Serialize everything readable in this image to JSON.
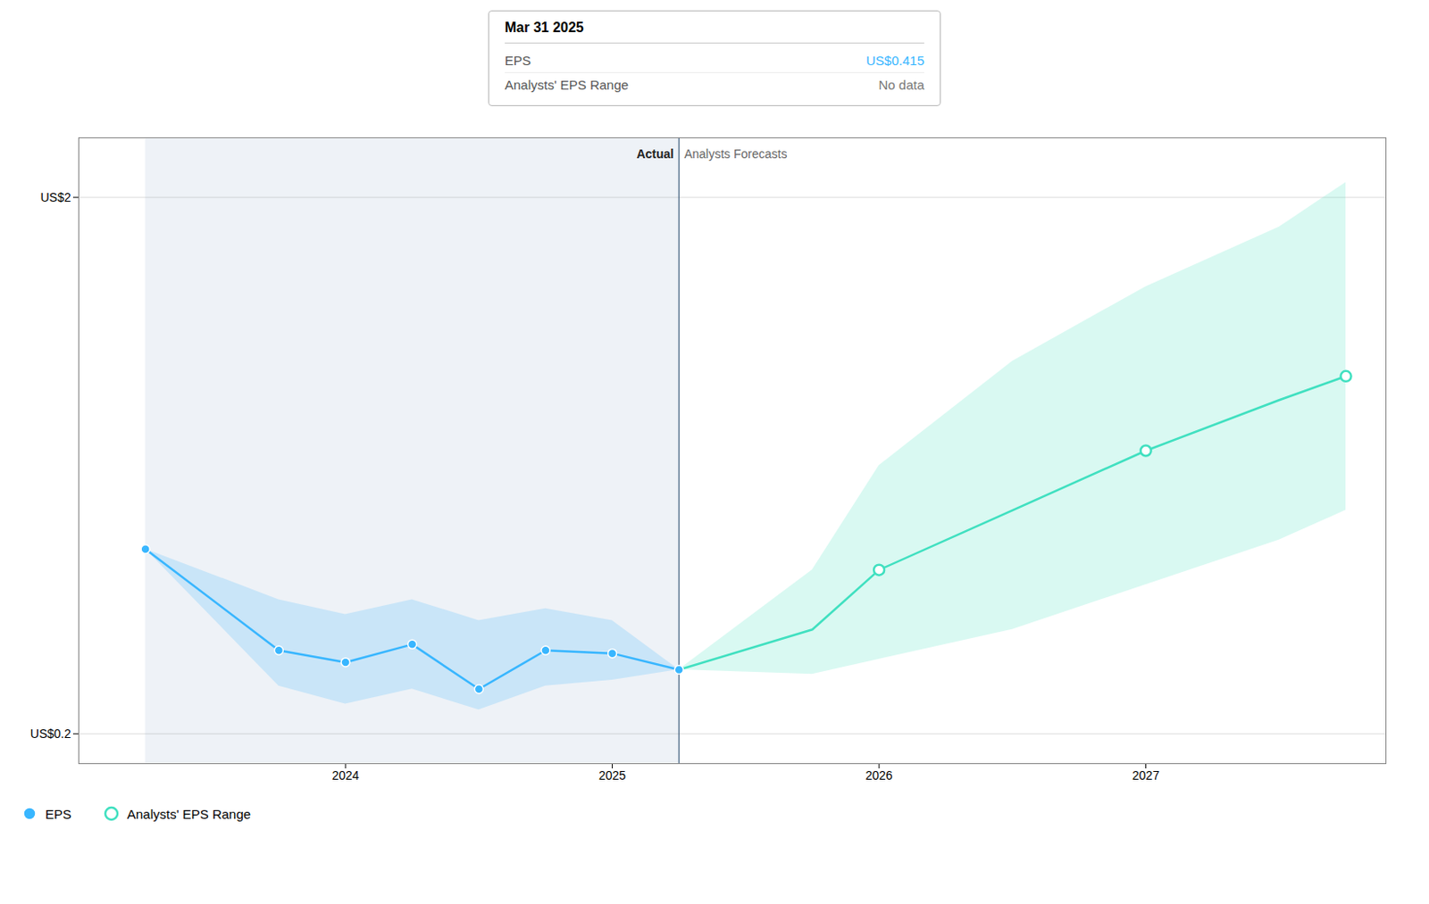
{
  "chart_data": {
    "type": "line",
    "title": "Mar 31 2025",
    "tooltip": {
      "rows": [
        {
          "label": "EPS",
          "value": "US$0.415"
        },
        {
          "label": "Analysts' EPS Range",
          "value": "No data"
        }
      ]
    },
    "series": [
      {
        "name": "EPS",
        "color": "#38b6ff",
        "marker": "circle",
        "x": [
          2023.25,
          2023.75,
          2024.0,
          2024.25,
          2024.5,
          2024.75,
          2025.0,
          2025.25
        ],
        "values": [
          0.82,
          0.48,
          0.44,
          0.5,
          0.35,
          0.48,
          0.47,
          0.415
        ],
        "band_upper": [
          0.82,
          0.65,
          0.6,
          0.65,
          0.58,
          0.62,
          0.58,
          0.415
        ],
        "band_lower": [
          0.82,
          0.36,
          0.3,
          0.35,
          0.28,
          0.36,
          0.38,
          0.415
        ]
      },
      {
        "name": "Analysts' EPS Range",
        "color": "#40e0c0",
        "marker": "ring",
        "x": [
          2025.25,
          2025.75,
          2026.0,
          2026.5,
          2027.0,
          2027.5,
          2027.75
        ],
        "values": [
          0.415,
          0.55,
          0.75,
          0.95,
          1.15,
          1.32,
          1.4
        ],
        "band_upper": [
          0.415,
          0.75,
          1.1,
          1.45,
          1.7,
          1.9,
          2.05
        ],
        "band_lower": [
          0.415,
          0.4,
          0.45,
          0.55,
          0.7,
          0.85,
          0.95
        ],
        "marker_x": [
          2026.0,
          2027.0,
          2027.75
        ],
        "marker_values": [
          0.75,
          1.15,
          1.4
        ]
      }
    ],
    "divider": {
      "x": 2025.25,
      "left_label": "Actual",
      "right_label": "Analysts Forecasts"
    },
    "xlim": [
      2023.0,
      2027.9
    ],
    "xticks": [
      2024,
      2025,
      2026,
      2027
    ],
    "ylim": [
      0.1,
      2.2
    ],
    "yticks": [
      {
        "value": 0.2,
        "label": "US$0.2"
      },
      {
        "value": 2,
        "label": "US$2"
      }
    ],
    "grid": true,
    "legend": "bottom"
  }
}
